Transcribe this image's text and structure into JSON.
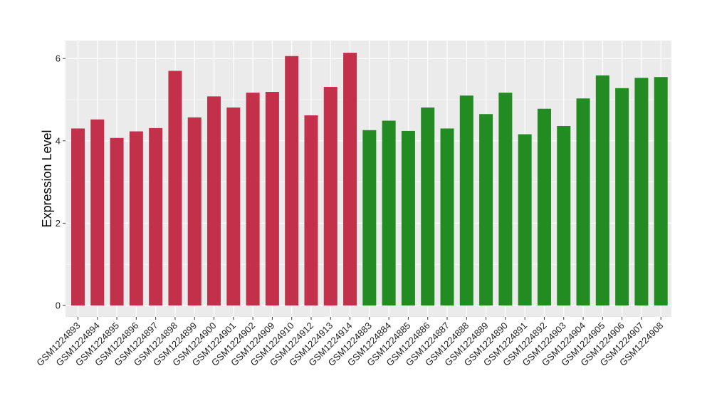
{
  "chart_data": {
    "type": "bar",
    "title": "",
    "xlabel": "",
    "ylabel": "Expression Level",
    "ylim": [
      0,
      6.4
    ],
    "yticks": [
      0,
      2,
      4,
      6
    ],
    "grid": true,
    "background": "#EBEBEB",
    "gridline_color": "#FFFFFF",
    "categories": [
      "GSM1224893",
      "GSM1224894",
      "GSM1224895",
      "GSM1224896",
      "GSM1224897",
      "GSM1224898",
      "GSM1224899",
      "GSM1224900",
      "GSM1224901",
      "GSM1224902",
      "GSM1224909",
      "GSM1224910",
      "GSM1224912",
      "GSM1224913",
      "GSM1224914",
      "GSM1224883",
      "GSM1224884",
      "GSM1224885",
      "GSM1224886",
      "GSM1224887",
      "GSM1224888",
      "GSM1224889",
      "GSM1224890",
      "GSM1224891",
      "GSM1224892",
      "GSM1224903",
      "GSM1224904",
      "GSM1224905",
      "GSM1224906",
      "GSM1224907",
      "GSM1224908"
    ],
    "values": [
      4.3,
      4.52,
      4.07,
      4.23,
      4.31,
      5.7,
      4.57,
      5.08,
      4.81,
      5.17,
      5.19,
      6.06,
      4.62,
      5.31,
      6.14,
      4.26,
      4.49,
      4.24,
      4.81,
      4.3,
      5.1,
      4.65,
      5.17,
      4.16,
      4.78,
      4.36,
      5.03,
      5.59,
      5.28,
      5.53,
      5.55
    ],
    "bar_colors": [
      "#C3304A",
      "#C3304A",
      "#C3304A",
      "#C3304A",
      "#C3304A",
      "#C3304A",
      "#C3304A",
      "#C3304A",
      "#C3304A",
      "#C3304A",
      "#C3304A",
      "#C3304A",
      "#C3304A",
      "#C3304A",
      "#C3304A",
      "#228B22",
      "#228B22",
      "#228B22",
      "#228B22",
      "#228B22",
      "#228B22",
      "#228B22",
      "#228B22",
      "#228B22",
      "#228B22",
      "#228B22",
      "#228B22",
      "#228B22",
      "#228B22",
      "#228B22",
      "#228B22"
    ]
  }
}
